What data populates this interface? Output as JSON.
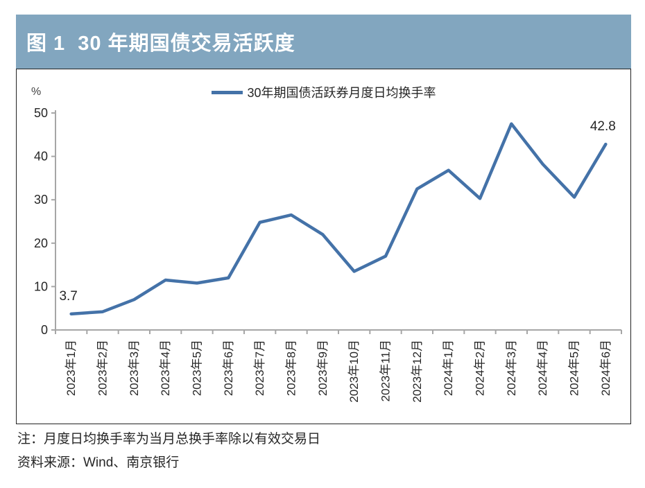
{
  "header": {
    "title": "图 1  30 年期国债交易活跃度"
  },
  "legend": {
    "label": "30年期国债活跃券月度日均换手率"
  },
  "chart_data": {
    "type": "line",
    "title": "30 年期国债交易活跃度",
    "unit_label": "%",
    "categories": [
      "2023年1月",
      "2023年2月",
      "2023年3月",
      "2023年4月",
      "2023年5月",
      "2023年6月",
      "2023年7月",
      "2023年8月",
      "2023年9月",
      "2023年10月",
      "2023年11月",
      "2023年12月",
      "2024年1月",
      "2024年2月",
      "2024年3月",
      "2024年4月",
      "2024年5月",
      "2024年6月"
    ],
    "series": [
      {
        "name": "30年期国债活跃券月度日均换手率",
        "values": [
          3.7,
          4.2,
          7.0,
          11.5,
          10.8,
          12.0,
          24.8,
          26.5,
          22.0,
          13.5,
          17.0,
          32.5,
          36.8,
          30.3,
          47.5,
          38.2,
          30.6,
          42.8
        ]
      }
    ],
    "ylim": [
      0,
      50
    ],
    "yticks": [
      0,
      10,
      20,
      30,
      40,
      50
    ],
    "grid": false,
    "legend_position": "top-center",
    "point_labels": [
      {
        "index": 0,
        "text": "3.7"
      },
      {
        "index": 17,
        "text": "42.8"
      }
    ],
    "line_color": "#4472a8",
    "axis_color": "#a6a6a6",
    "tick_text_color": "#262626"
  },
  "notes": {
    "note": "注：月度日均换手率为当月总换手率除以有效交易日",
    "source": "资料来源：Wind、南京银行"
  },
  "colors": {
    "header_bg": "#82a6bf",
    "header_text": "#ffffff",
    "box_border": "#222222"
  }
}
